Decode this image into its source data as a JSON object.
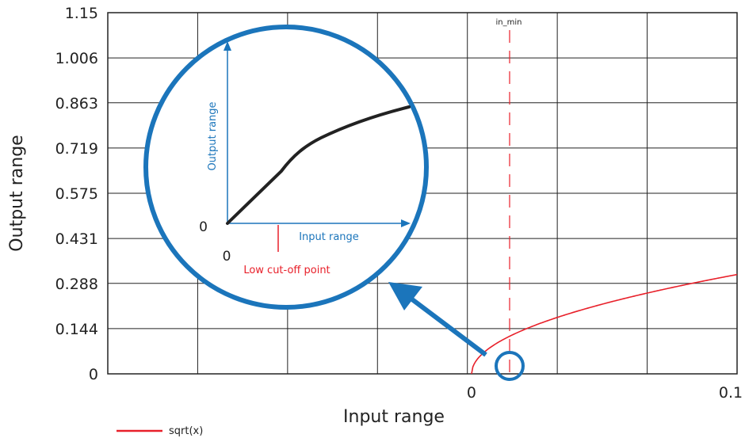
{
  "chart_data": {
    "type": "line",
    "xlabel": "Input range",
    "ylabel": "Output range",
    "x_ticks": [
      "0",
      "0.1"
    ],
    "x_tick_values": [
      0,
      0.1
    ],
    "y_ticks": [
      "0",
      "0.144",
      "0.288",
      "0.431",
      "0.575",
      "0.719",
      "0.863",
      "1.006",
      "1.15"
    ],
    "y_tick_values": [
      0,
      0.144,
      0.288,
      0.431,
      0.575,
      0.719,
      0.863,
      1.006,
      1.15
    ],
    "xlim": [
      -0.137,
      0.1
    ],
    "ylim": [
      0,
      1.15
    ],
    "grid": true,
    "legend_position": "bottom-left",
    "series": [
      {
        "name": "sqrt(x)",
        "color": "#e8202a",
        "function": "sqrt",
        "x_range": [
          0,
          0.1
        ]
      }
    ],
    "marker_line": {
      "label": "in_min",
      "x": 0,
      "color": "#e8202a",
      "style": "dashed"
    },
    "inset": {
      "x_axis_label": "Input range",
      "y_axis_label": "Output range",
      "origin_x_label": "0",
      "origin_y_label": "0",
      "cutoff_label": "Low cut-off point",
      "circle_color": "#1b75bb",
      "axis_color": "#1b75bb",
      "cutoff_color": "#e8202a",
      "curve_color": "#222222"
    }
  }
}
